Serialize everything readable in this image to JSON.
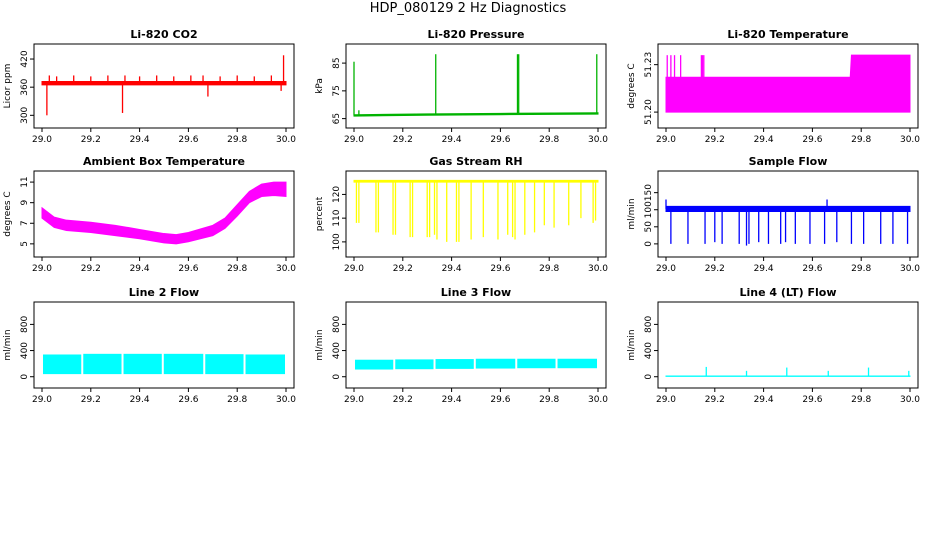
{
  "title": "HDP_080129  2 Hz Diagnostics",
  "chart_data": [
    {
      "type": "line",
      "title": "Li-820 CO2",
      "xlabel": "",
      "ylabel": "Licor ppm",
      "color": "#ff0000",
      "xlim": [
        29.0,
        30.0
      ],
      "ylim": [
        290,
        435
      ],
      "xticks": [
        "29.0",
        "29.2",
        "29.4",
        "29.6",
        "29.8",
        "30.0"
      ],
      "yticks": [
        "300",
        "360",
        "420"
      ],
      "band": [
        [
          29.0,
          365,
          372
        ],
        [
          30.0,
          365,
          372
        ]
      ],
      "spikes": [
        [
          29.02,
          300
        ],
        [
          29.03,
          385
        ],
        [
          29.06,
          383
        ],
        [
          29.13,
          385
        ],
        [
          29.2,
          383
        ],
        [
          29.27,
          385
        ],
        [
          29.33,
          305
        ],
        [
          29.34,
          385
        ],
        [
          29.4,
          383
        ],
        [
          29.47,
          385
        ],
        [
          29.54,
          383
        ],
        [
          29.61,
          385
        ],
        [
          29.66,
          385
        ],
        [
          29.68,
          340
        ],
        [
          29.73,
          383
        ],
        [
          29.8,
          385
        ],
        [
          29.87,
          383
        ],
        [
          29.94,
          385
        ],
        [
          29.98,
          352
        ],
        [
          29.99,
          428
        ]
      ]
    },
    {
      "type": "line",
      "title": "Li-820 Pressure",
      "xlabel": "",
      "ylabel": "kPa",
      "color": "#00b300",
      "xlim": [
        29.0,
        30.0
      ],
      "ylim": [
        64.5,
        89
      ],
      "xticks": [
        "29.0",
        "29.2",
        "29.4",
        "29.6",
        "29.8",
        "30.0"
      ],
      "yticks": [
        "65",
        "75",
        "85"
      ],
      "band": [
        [
          29.0,
          65.9,
          66.4
        ],
        [
          29.3,
          66.2,
          66.7
        ],
        [
          29.6,
          66.4,
          66.9
        ],
        [
          30.0,
          66.6,
          67.1
        ]
      ],
      "spikes": [
        [
          29.0,
          85.5
        ],
        [
          29.02,
          68.0
        ],
        [
          29.335,
          88.2
        ],
        [
          29.67,
          88.2
        ],
        [
          29.675,
          88.2
        ],
        [
          29.995,
          88.2
        ]
      ]
    },
    {
      "type": "line",
      "title": "Li-820 Temperature",
      "xlabel": "",
      "ylabel": "degrees C",
      "color": "#ff00ff",
      "xlim": [
        29.0,
        30.0
      ],
      "ylim": [
        51.195,
        51.238
      ],
      "xticks": [
        "29.0",
        "29.2",
        "29.4",
        "29.6",
        "29.8",
        "30.0"
      ],
      "yticks": [
        "51.20",
        "51.23"
      ],
      "band": [
        [
          29.0,
          51.2,
          51.222
        ],
        [
          29.755,
          51.2,
          51.222
        ],
        [
          29.76,
          51.2,
          51.236
        ],
        [
          30.0,
          51.2,
          51.236
        ]
      ],
      "spikes": [
        [
          29.005,
          51.236
        ],
        [
          29.02,
          51.236
        ],
        [
          29.035,
          51.236
        ],
        [
          29.06,
          51.236
        ],
        [
          29.145,
          51.236
        ],
        [
          29.15,
          51.236
        ],
        [
          29.155,
          51.236
        ]
      ]
    },
    {
      "type": "line",
      "title": "Ambient Box Temperature",
      "xlabel": "",
      "ylabel": "degrees C",
      "color": "#ff00ff",
      "xlim": [
        29.0,
        30.0
      ],
      "ylim": [
        4.5,
        11.3
      ],
      "xticks": [
        "29.0",
        "29.2",
        "29.4",
        "29.6",
        "29.8",
        "30.0"
      ],
      "yticks": [
        "5",
        "7",
        "9",
        "11"
      ],
      "band": [
        [
          29.0,
          7.5,
          8.5
        ],
        [
          29.05,
          6.6,
          7.6
        ],
        [
          29.1,
          6.3,
          7.3
        ],
        [
          29.2,
          6.1,
          7.1
        ],
        [
          29.3,
          5.8,
          6.8
        ],
        [
          29.4,
          5.5,
          6.4
        ],
        [
          29.5,
          5.1,
          6.0
        ],
        [
          29.55,
          5.0,
          5.9
        ],
        [
          29.6,
          5.2,
          6.1
        ],
        [
          29.7,
          5.8,
          6.8
        ],
        [
          29.75,
          6.5,
          7.5
        ],
        [
          29.8,
          7.7,
          8.8
        ],
        [
          29.85,
          9.0,
          10.1
        ],
        [
          29.9,
          9.6,
          10.8
        ],
        [
          29.95,
          9.7,
          11.0
        ],
        [
          30.0,
          9.6,
          11.0
        ]
      ],
      "spikes": []
    },
    {
      "type": "line",
      "title": "Gas Stream RH",
      "xlabel": "",
      "ylabel": "percent",
      "color": "#ffff00",
      "xlim": [
        29.0,
        30.0
      ],
      "ylim": [
        97,
        126.5
      ],
      "xticks": [
        "29.0",
        "29.2",
        "29.4",
        "29.6",
        "29.8",
        "30.0"
      ],
      "yticks": [
        "100",
        "110",
        "120"
      ],
      "band": [
        [
          29.0,
          125.2,
          125.9
        ],
        [
          30.0,
          125.2,
          125.9
        ]
      ],
      "spikes": [
        [
          29.01,
          108
        ],
        [
          29.02,
          108
        ],
        [
          29.09,
          104
        ],
        [
          29.1,
          104
        ],
        [
          29.16,
          103
        ],
        [
          29.17,
          103
        ],
        [
          29.23,
          102
        ],
        [
          29.24,
          102
        ],
        [
          29.3,
          102
        ],
        [
          29.31,
          102
        ],
        [
          29.33,
          103
        ],
        [
          29.34,
          101
        ],
        [
          29.38,
          100
        ],
        [
          29.42,
          100
        ],
        [
          29.43,
          100
        ],
        [
          29.48,
          101
        ],
        [
          29.53,
          102
        ],
        [
          29.59,
          101
        ],
        [
          29.63,
          103
        ],
        [
          29.65,
          102
        ],
        [
          29.66,
          101
        ],
        [
          29.7,
          103
        ],
        [
          29.74,
          104
        ],
        [
          29.78,
          107
        ],
        [
          29.82,
          106
        ],
        [
          29.88,
          107
        ],
        [
          29.93,
          110
        ],
        [
          29.98,
          108
        ],
        [
          29.99,
          109
        ]
      ]
    },
    {
      "type": "line",
      "title": "Sample Flow",
      "xlabel": "",
      "ylabel": "ml/min",
      "color": "#0000ff",
      "xlim": [
        29.0,
        30.0
      ],
      "ylim": [
        -15,
        190
      ],
      "xticks": [
        "29.0",
        "29.2",
        "29.4",
        "29.6",
        "29.8",
        "30.0"
      ],
      "yticks": [
        "0",
        "50",
        "100",
        "150"
      ],
      "band": [
        [
          29.0,
          95,
          110
        ],
        [
          30.0,
          95,
          110
        ]
      ],
      "spikes": [
        [
          29.0,
          130
        ],
        [
          29.02,
          0
        ],
        [
          29.09,
          0
        ],
        [
          29.16,
          0
        ],
        [
          29.2,
          5
        ],
        [
          29.23,
          0
        ],
        [
          29.3,
          0
        ],
        [
          29.33,
          -5
        ],
        [
          29.34,
          0
        ],
        [
          29.38,
          5
        ],
        [
          29.42,
          0
        ],
        [
          29.47,
          0
        ],
        [
          29.49,
          5
        ],
        [
          29.53,
          0
        ],
        [
          29.59,
          0
        ],
        [
          29.65,
          0
        ],
        [
          29.66,
          130
        ],
        [
          29.7,
          5
        ],
        [
          29.76,
          0
        ],
        [
          29.81,
          0
        ],
        [
          29.88,
          0
        ],
        [
          29.93,
          0
        ],
        [
          29.99,
          0
        ]
      ]
    },
    {
      "type": "area",
      "title": "Line 2 Flow",
      "xlabel": "",
      "ylabel": "ml/min",
      "color": "#00ffff",
      "xlim": [
        29.0,
        30.0
      ],
      "ylim": [
        -50,
        1020
      ],
      "xticks": [
        "29.0",
        "29.2",
        "29.4",
        "29.6",
        "29.8",
        "30.0"
      ],
      "yticks": [
        "0",
        "400",
        "800"
      ],
      "blocks": [
        [
          29.0,
          29.165,
          40,
          340
        ],
        [
          29.165,
          29.33,
          40,
          350
        ],
        [
          29.33,
          29.495,
          40,
          350
        ],
        [
          29.495,
          29.665,
          40,
          350
        ],
        [
          29.665,
          29.83,
          40,
          345
        ],
        [
          29.83,
          30.0,
          40,
          340
        ]
      ],
      "spikes": []
    },
    {
      "type": "area",
      "title": "Line 3 Flow",
      "xlabel": "",
      "ylabel": "ml/min",
      "color": "#00ffff",
      "xlim": [
        29.0,
        30.0
      ],
      "ylim": [
        -50,
        1020
      ],
      "xticks": [
        "29.0",
        "29.2",
        "29.4",
        "29.6",
        "29.8",
        "30.0"
      ],
      "yticks": [
        "0",
        "400",
        "800"
      ],
      "blocks": [
        [
          29.0,
          29.165,
          110,
          260
        ],
        [
          29.165,
          29.33,
          115,
          265
        ],
        [
          29.33,
          29.495,
          120,
          270
        ],
        [
          29.495,
          29.665,
          125,
          275
        ],
        [
          29.665,
          29.83,
          130,
          275
        ],
        [
          29.83,
          30.0,
          130,
          275
        ]
      ],
      "spikes": []
    },
    {
      "type": "line",
      "title": "Line 4 (LT) Flow",
      "xlabel": "",
      "ylabel": "ml/min",
      "color": "#00ffff",
      "xlim": [
        29.0,
        30.0
      ],
      "ylim": [
        -50,
        1020
      ],
      "xticks": [
        "29.0",
        "29.2",
        "29.4",
        "29.6",
        "29.8",
        "30.0"
      ],
      "yticks": [
        "0",
        "400",
        "800"
      ],
      "band": [
        [
          29.0,
          5,
          12
        ],
        [
          30.0,
          5,
          12
        ]
      ],
      "spikes": [
        [
          29.165,
          150
        ],
        [
          29.33,
          90
        ],
        [
          29.495,
          140
        ],
        [
          29.665,
          90
        ],
        [
          29.83,
          140
        ],
        [
          29.995,
          90
        ]
      ]
    }
  ]
}
